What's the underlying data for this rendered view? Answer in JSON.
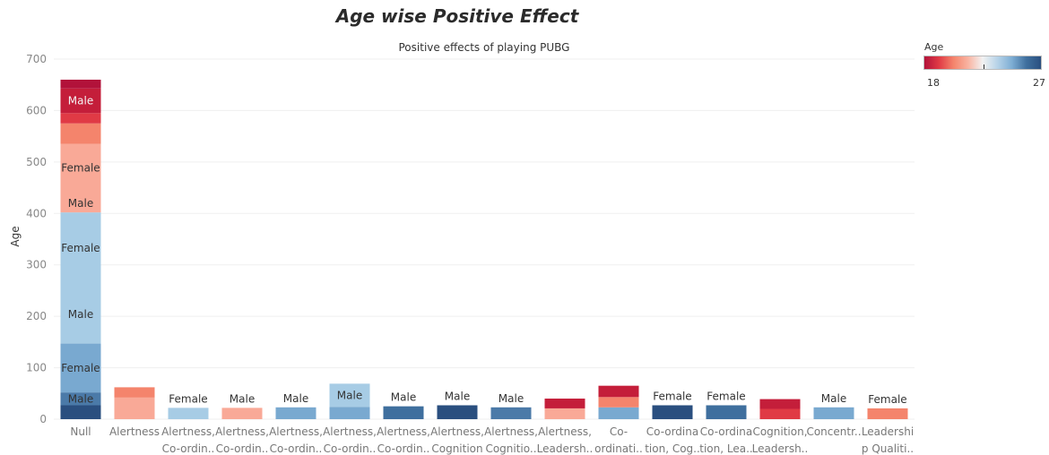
{
  "page": {
    "title": "Age wise Positive Effect"
  },
  "legend": {
    "title": "Age",
    "min_label": "18",
    "max_label": "27",
    "colors": [
      "#b2123a",
      "#e03a45",
      "#f4846c",
      "#f9b3a1",
      "#f2f2f2",
      "#b7d3e8",
      "#7eaed4",
      "#3f6f9e",
      "#2a4f7f"
    ]
  },
  "chart_data": {
    "type": "bar",
    "stacked": true,
    "title": "Positive effects of playing PUBG",
    "ylabel": "Age",
    "xlabel": "",
    "ylim": [
      0,
      700
    ],
    "yticks": [
      0,
      100,
      200,
      300,
      400,
      500,
      600,
      700
    ],
    "grid": true,
    "legend_position": "top-right",
    "categories": [
      [
        "Null"
      ],
      [
        "Alertness"
      ],
      [
        "Alertness,",
        "Co-ordin.."
      ],
      [
        "Alertness,",
        "Co-ordin.."
      ],
      [
        "Alertness,",
        "Co-ordin.."
      ],
      [
        "Alertness,",
        "Co-ordin.."
      ],
      [
        "Alertness,",
        "Co-ordin.."
      ],
      [
        "Alertness,",
        "Cognition"
      ],
      [
        "Alertness,",
        "Cognitio.."
      ],
      [
        "Alertness,",
        "Leadersh.."
      ],
      [
        "Co-",
        "ordinati.."
      ],
      [
        "Co-ordina",
        "tion, Cog.."
      ],
      [
        "Co-ordina",
        "tion, Lea.."
      ],
      [
        "Cognition,",
        "Leadersh.."
      ],
      [
        "Concentr.."
      ],
      [
        "Leadershi",
        "p Qualiti.."
      ]
    ],
    "bars": [
      {
        "segments": [
          {
            "value": 27,
            "color": "#2a4f7f"
          },
          {
            "value": 25,
            "color": "#4b7aa8",
            "label": "Male"
          },
          {
            "value": 95,
            "color": "#79a9d0",
            "label": "Female"
          },
          {
            "value": 255,
            "color": "#a7cce5",
            "label": "Male",
            "label_at": 204
          },
          {
            "value": 0,
            "color": "#a7cce5",
            "label": "Female",
            "label_at": 333
          },
          {
            "value": 133,
            "color": "#f9a997",
            "label": "Male",
            "label_at": 420
          },
          {
            "value": 0,
            "color": "#f9a997",
            "label": "Female",
            "label_at": 488
          },
          {
            "value": 40,
            "color": "#f4846c"
          },
          {
            "value": 20,
            "color": "#e03a45"
          },
          {
            "value": 48,
            "color": "#c41e3a",
            "label": "Male"
          },
          {
            "value": 17,
            "color": "#b2123a"
          }
        ]
      },
      {
        "segments": [
          {
            "value": 42,
            "color": "#f9a997"
          },
          {
            "value": 20,
            "color": "#f4846c"
          }
        ]
      },
      {
        "segments": [
          {
            "value": 22,
            "color": "#a7cce5"
          }
        ],
        "top_label": "Female"
      },
      {
        "segments": [
          {
            "value": 22,
            "color": "#f9a997"
          }
        ],
        "top_label": "Male"
      },
      {
        "segments": [
          {
            "value": 23,
            "color": "#79a9d0"
          }
        ],
        "top_label": "Male"
      },
      {
        "segments": [
          {
            "value": 24,
            "color": "#79a9d0"
          },
          {
            "value": 45,
            "color": "#a7cce5",
            "label": "Male"
          }
        ]
      },
      {
        "segments": [
          {
            "value": 25,
            "color": "#3f6f9e"
          }
        ],
        "top_label": "Male"
      },
      {
        "segments": [
          {
            "value": 27,
            "color": "#2a4f7f"
          }
        ],
        "top_label": "Male"
      },
      {
        "segments": [
          {
            "value": 23,
            "color": "#4b7aa8"
          }
        ],
        "top_label": "Male"
      },
      {
        "segments": [
          {
            "value": 21,
            "color": "#f9a997"
          },
          {
            "value": 19,
            "color": "#c41e3a"
          }
        ]
      },
      {
        "segments": [
          {
            "value": 23,
            "color": "#79a9d0"
          },
          {
            "value": 20,
            "color": "#f4846c"
          },
          {
            "value": 22,
            "color": "#c41e3a"
          }
        ]
      },
      {
        "segments": [
          {
            "value": 27,
            "color": "#2a4f7f"
          }
        ],
        "top_label": "Female"
      },
      {
        "segments": [
          {
            "value": 27,
            "color": "#3f6f9e"
          }
        ],
        "top_label": "Female"
      },
      {
        "segments": [
          {
            "value": 20,
            "color": "#e03a45"
          },
          {
            "value": 19,
            "color": "#c41e3a"
          }
        ]
      },
      {
        "segments": [
          {
            "value": 23,
            "color": "#79a9d0"
          }
        ],
        "top_label": "Male"
      },
      {
        "segments": [
          {
            "value": 21,
            "color": "#f4846c"
          }
        ],
        "top_label": "Female"
      }
    ]
  }
}
